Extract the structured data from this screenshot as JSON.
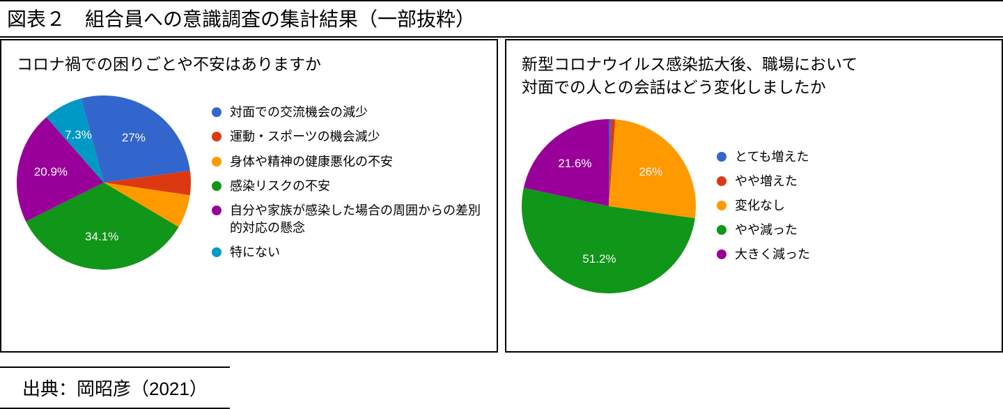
{
  "header": {
    "title": "図表２　組合員への意識調査の集計結果（一部抜粋）"
  },
  "panels": [
    {
      "title": "コロナ禍での困りごとや不安はありますか",
      "pie": {
        "type": "pie",
        "radius": 125,
        "start_angle_deg": -15,
        "background_color": "#ffffff",
        "label_fontsize": 17,
        "label_color": "#ffffff",
        "slices": [
          {
            "label": "対面での交流機会の減少",
            "value": 27.0,
            "display": "27%",
            "color": "#3366cc",
            "show_label": true
          },
          {
            "label": "運動・スポーツの機会減少",
            "value": 4.5,
            "display": "",
            "color": "#dc3912",
            "show_label": false
          },
          {
            "label": "身体や精神の健康悪化の不安",
            "value": 6.2,
            "display": "",
            "color": "#ff9900",
            "show_label": false
          },
          {
            "label": "感染リスクの不安",
            "value": 34.1,
            "display": "34.1%",
            "color": "#109618",
            "show_label": true
          },
          {
            "label": "自分や家族が感染した場合の周囲からの差別的対応の懸念",
            "value": 20.9,
            "display": "20.9%",
            "color": "#990099",
            "show_label": true
          },
          {
            "label": "特にない",
            "value": 7.3,
            "display": "7.3%",
            "color": "#0099c6",
            "show_label": true
          }
        ]
      },
      "legend_fontsize": 18
    },
    {
      "title": "新型コロナウイルス感染拡大後、職場において\n対面での人との会話はどう変化しましたか",
      "pie": {
        "type": "pie",
        "radius": 125,
        "start_angle_deg": 0,
        "background_color": "#ffffff",
        "label_fontsize": 17,
        "label_color": "#ffffff",
        "slices": [
          {
            "label": "とても増えた",
            "value": 0.4,
            "display": "",
            "color": "#3366cc",
            "show_label": false
          },
          {
            "label": "やや増えた",
            "value": 0.8,
            "display": "",
            "color": "#dc3912",
            "show_label": false
          },
          {
            "label": "変化なし",
            "value": 26.0,
            "display": "26%",
            "color": "#ff9900",
            "show_label": true
          },
          {
            "label": "やや減った",
            "value": 51.2,
            "display": "51.2%",
            "color": "#109618",
            "show_label": true
          },
          {
            "label": "大きく減った",
            "value": 21.6,
            "display": "21.6%",
            "color": "#990099",
            "show_label": true
          }
        ]
      },
      "legend_fontsize": 18
    }
  ],
  "footer": {
    "source": "出典：岡昭彦（2021）"
  }
}
